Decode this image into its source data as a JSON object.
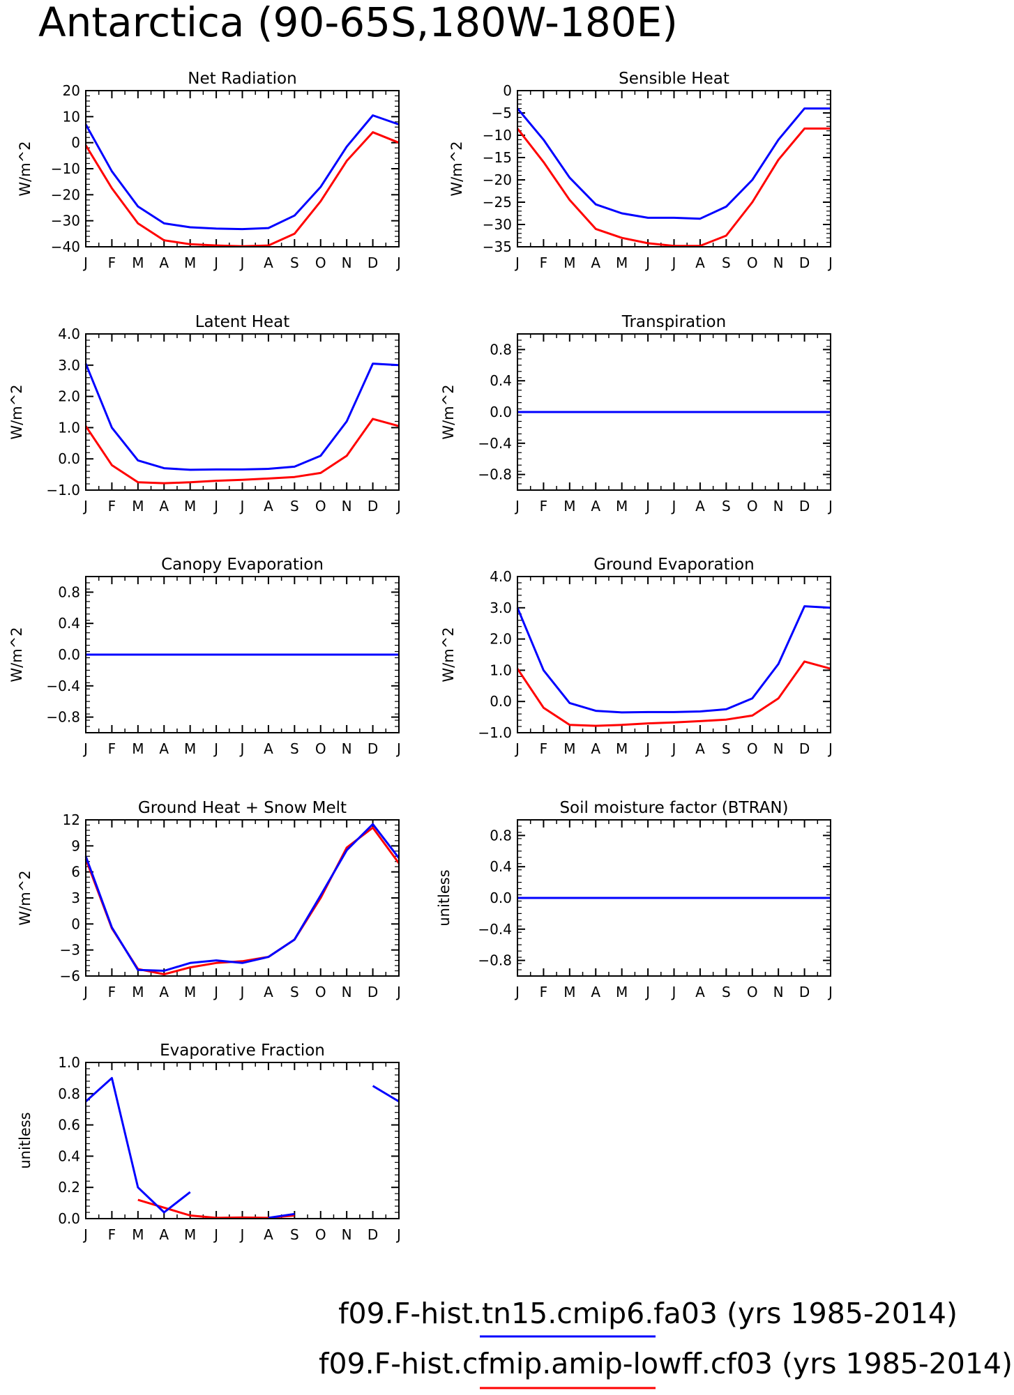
{
  "title": "Antarctica (90-65S,180W-180E)",
  "colors": {
    "series_a": "#0000ff",
    "series_b": "#ff0000"
  },
  "legend": [
    {
      "label": "f09.F-hist.tn15.cmip6.fa03 (yrs 1985-2014)",
      "color": "#0000ff"
    },
    {
      "label": "f09.F-hist.cfmip.amip-lowff.cf03 (yrs 1985-2014)",
      "color": "#ff0000"
    }
  ],
  "chart_data": [
    {
      "type": "line",
      "title": "Net Radiation",
      "ylabel": "W/m^2",
      "x": [
        "J",
        "F",
        "M",
        "A",
        "M",
        "J",
        "J",
        "A",
        "S",
        "O",
        "N",
        "D",
        "J"
      ],
      "ylim": [
        -40,
        20
      ],
      "yticks": [
        20,
        10,
        0,
        -10,
        -20,
        -30,
        -40
      ],
      "yticklabels": [
        "20",
        "10",
        "0",
        "−10",
        "−20",
        "−30",
        "−40"
      ],
      "series": [
        {
          "color": "#0000ff",
          "values": [
            7,
            -11,
            -24.5,
            -31,
            -32.5,
            -33,
            -33.2,
            -32.8,
            -28,
            -17,
            -1.5,
            10.5,
            7
          ]
        },
        {
          "color": "#ff0000",
          "values": [
            -1,
            -17.5,
            -31,
            -37.5,
            -39,
            -39.5,
            -39.8,
            -39.5,
            -35,
            -22.5,
            -7,
            4,
            0
          ]
        }
      ]
    },
    {
      "type": "line",
      "title": "Sensible Heat",
      "ylabel": "W/m^2",
      "x": [
        "J",
        "F",
        "M",
        "A",
        "M",
        "J",
        "J",
        "A",
        "S",
        "O",
        "N",
        "D",
        "J"
      ],
      "ylim": [
        -35,
        0
      ],
      "yticks": [
        0,
        -5,
        -10,
        -15,
        -20,
        -25,
        -30,
        -35
      ],
      "yticklabels": [
        "0",
        "−5",
        "−10",
        "−15",
        "−20",
        "−25",
        "−30",
        "−35"
      ],
      "series": [
        {
          "color": "#0000ff",
          "values": [
            -4,
            -11,
            -19.5,
            -25.5,
            -27.5,
            -28.5,
            -28.5,
            -28.7,
            -26,
            -20,
            -11,
            -4,
            -4
          ]
        },
        {
          "color": "#ff0000",
          "values": [
            -8.5,
            -16,
            -24.5,
            -31,
            -33,
            -34.2,
            -34.8,
            -34.8,
            -32.5,
            -25,
            -15.5,
            -8.5,
            -8.5
          ]
        }
      ]
    },
    {
      "type": "line",
      "title": "Latent Heat",
      "ylabel": "W/m^2",
      "x": [
        "J",
        "F",
        "M",
        "A",
        "M",
        "J",
        "J",
        "A",
        "S",
        "O",
        "N",
        "D",
        "J"
      ],
      "ylim": [
        -1,
        4
      ],
      "yticks": [
        4,
        3,
        2,
        1,
        0,
        -1
      ],
      "yticklabels": [
        "4.0",
        "3.0",
        "2.0",
        "1.0",
        "0.0",
        "−1.0"
      ],
      "series": [
        {
          "color": "#0000ff",
          "values": [
            3.05,
            1.0,
            -0.05,
            -0.3,
            -0.35,
            -0.34,
            -0.34,
            -0.32,
            -0.25,
            0.1,
            1.2,
            3.05,
            3.0
          ]
        },
        {
          "color": "#ff0000",
          "values": [
            1.05,
            -0.2,
            -0.75,
            -0.78,
            -0.75,
            -0.7,
            -0.67,
            -0.63,
            -0.58,
            -0.45,
            0.1,
            1.28,
            1.05
          ]
        }
      ]
    },
    {
      "type": "line",
      "title": "Transpiration",
      "ylabel": "W/m^2",
      "x": [
        "J",
        "F",
        "M",
        "A",
        "M",
        "J",
        "J",
        "A",
        "S",
        "O",
        "N",
        "D",
        "J"
      ],
      "ylim": [
        -1,
        1
      ],
      "yticks": [
        0.8,
        0.4,
        0,
        -0.4,
        -0.8
      ],
      "yticklabels": [
        "0.8",
        "0.4",
        "0.0",
        "−0.4",
        "−0.8"
      ],
      "series": [
        {
          "color": "#ff0000",
          "values": [
            0,
            0,
            0,
            0,
            0,
            0,
            0,
            0,
            0,
            0,
            0,
            0,
            0
          ]
        },
        {
          "color": "#0000ff",
          "values": [
            0,
            0,
            0,
            0,
            0,
            0,
            0,
            0,
            0,
            0,
            0,
            0,
            0
          ]
        }
      ]
    },
    {
      "type": "line",
      "title": "Canopy Evaporation",
      "ylabel": "W/m^2",
      "x": [
        "J",
        "F",
        "M",
        "A",
        "M",
        "J",
        "J",
        "A",
        "S",
        "O",
        "N",
        "D",
        "J"
      ],
      "ylim": [
        -1,
        1
      ],
      "yticks": [
        0.8,
        0.4,
        0,
        -0.4,
        -0.8
      ],
      "yticklabels": [
        "0.8",
        "0.4",
        "0.0",
        "−0.4",
        "−0.8"
      ],
      "series": [
        {
          "color": "#ff0000",
          "values": [
            0,
            0,
            0,
            0,
            0,
            0,
            0,
            0,
            0,
            0,
            0,
            0,
            0
          ]
        },
        {
          "color": "#0000ff",
          "values": [
            0,
            0,
            0,
            0,
            0,
            0,
            0,
            0,
            0,
            0,
            0,
            0,
            0
          ]
        }
      ]
    },
    {
      "type": "line",
      "title": "Ground Evaporation",
      "ylabel": "W/m^2",
      "x": [
        "J",
        "F",
        "M",
        "A",
        "M",
        "J",
        "J",
        "A",
        "S",
        "O",
        "N",
        "D",
        "J"
      ],
      "ylim": [
        -1,
        4
      ],
      "yticks": [
        4,
        3,
        2,
        1,
        0,
        -1
      ],
      "yticklabels": [
        "4.0",
        "3.0",
        "2.0",
        "1.0",
        "0.0",
        "−1.0"
      ],
      "series": [
        {
          "color": "#0000ff",
          "values": [
            3.0,
            1.0,
            -0.05,
            -0.3,
            -0.35,
            -0.34,
            -0.34,
            -0.32,
            -0.25,
            0.1,
            1.2,
            3.05,
            3.0
          ]
        },
        {
          "color": "#ff0000",
          "values": [
            1.05,
            -0.2,
            -0.75,
            -0.78,
            -0.75,
            -0.7,
            -0.67,
            -0.63,
            -0.58,
            -0.45,
            0.1,
            1.28,
            1.05
          ]
        }
      ]
    },
    {
      "type": "line",
      "title": "Ground Heat + Snow Melt",
      "ylabel": "W/m^2",
      "x": [
        "J",
        "F",
        "M",
        "A",
        "M",
        "J",
        "J",
        "A",
        "S",
        "O",
        "N",
        "D",
        "J"
      ],
      "ylim": [
        -6,
        12
      ],
      "yticks": [
        12,
        9,
        6,
        3,
        0,
        -3,
        -6
      ],
      "yticklabels": [
        "12",
        "9",
        "6",
        "3",
        "0",
        "−3",
        "−6"
      ],
      "series": [
        {
          "color": "#ff0000",
          "values": [
            7.5,
            -0.5,
            -5.2,
            -5.8,
            -5.0,
            -4.5,
            -4.3,
            -3.8,
            -1.8,
            3.0,
            8.8,
            11.1,
            7.0
          ]
        },
        {
          "color": "#0000ff",
          "values": [
            7.8,
            -0.4,
            -5.3,
            -5.4,
            -4.5,
            -4.2,
            -4.5,
            -3.8,
            -1.8,
            3.3,
            8.5,
            11.5,
            7.6
          ]
        }
      ]
    },
    {
      "type": "line",
      "title": "Soil moisture factor (BTRAN)",
      "ylabel": "unitless",
      "x": [
        "J",
        "F",
        "M",
        "A",
        "M",
        "J",
        "J",
        "A",
        "S",
        "O",
        "N",
        "D",
        "J"
      ],
      "ylim": [
        -1,
        1
      ],
      "yticks": [
        0.8,
        0.4,
        0,
        -0.4,
        -0.8
      ],
      "yticklabels": [
        "0.8",
        "0.4",
        "0.0",
        "−0.4",
        "−0.8"
      ],
      "series": [
        {
          "color": "#ff0000",
          "values": [
            0,
            0,
            0,
            0,
            0,
            0,
            0,
            0,
            0,
            0,
            0,
            0,
            0
          ]
        },
        {
          "color": "#0000ff",
          "values": [
            0,
            0,
            0,
            0,
            0,
            0,
            0,
            0,
            0,
            0,
            0,
            0,
            0
          ]
        }
      ]
    },
    {
      "type": "line",
      "title": "Evaporative Fraction",
      "ylabel": "unitless",
      "x": [
        "J",
        "F",
        "M",
        "A",
        "M",
        "J",
        "J",
        "A",
        "S",
        "O",
        "N",
        "D",
        "J"
      ],
      "ylim": [
        0,
        1
      ],
      "yticks": [
        1,
        0.8,
        0.6,
        0.4,
        0.2,
        0
      ],
      "yticklabels": [
        "1.0",
        "0.8",
        "0.6",
        "0.4",
        "0.2",
        "0.0"
      ],
      "series": [
        {
          "color": "#ff0000",
          "values": [
            null,
            null,
            0.12,
            0.07,
            0.02,
            0.005,
            0.007,
            0.005,
            0.02,
            null,
            null,
            null,
            null
          ]
        },
        {
          "color": "#0000ff",
          "values": [
            0.75,
            0.9,
            0.2,
            0.04,
            0.17,
            null,
            null,
            0.005,
            0.03,
            null,
            null,
            0.85,
            0.75
          ]
        }
      ]
    }
  ]
}
